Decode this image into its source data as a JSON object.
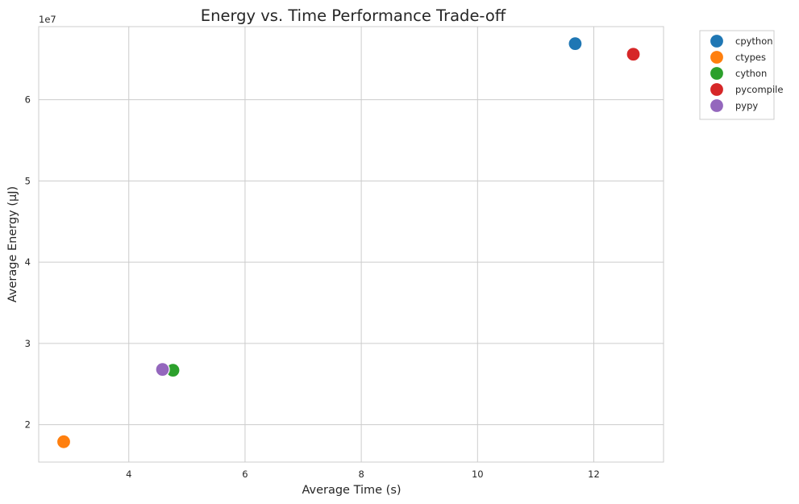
{
  "chart_data": {
    "type": "scatter",
    "title": "Energy vs. Time Performance Trade-off",
    "xlabel": "Average Time (s)",
    "ylabel": "Average Energy (µJ)",
    "y_offset_label": "1e7",
    "y_multiplier": 10000000,
    "xlim": [
      2.45,
      13.2
    ],
    "ylim": [
      15400000,
      69000000
    ],
    "xticks": [
      4,
      6,
      8,
      10,
      12
    ],
    "yticks": [
      20000000,
      30000000,
      40000000,
      50000000,
      60000000
    ],
    "grid": true,
    "legend_position": "outside-top-right",
    "series": [
      {
        "name": "cpython",
        "color": "#1f77b4",
        "x": 11.68,
        "y": 66900000
      },
      {
        "name": "ctypes",
        "color": "#ff7f0e",
        "x": 2.88,
        "y": 17900000
      },
      {
        "name": "cython",
        "color": "#2ca02c",
        "x": 4.76,
        "y": 26700000
      },
      {
        "name": "pycompile",
        "color": "#d62728",
        "x": 12.68,
        "y": 65600000
      },
      {
        "name": "pypy",
        "color": "#9467bd",
        "x": 4.58,
        "y": 26800000
      }
    ]
  }
}
